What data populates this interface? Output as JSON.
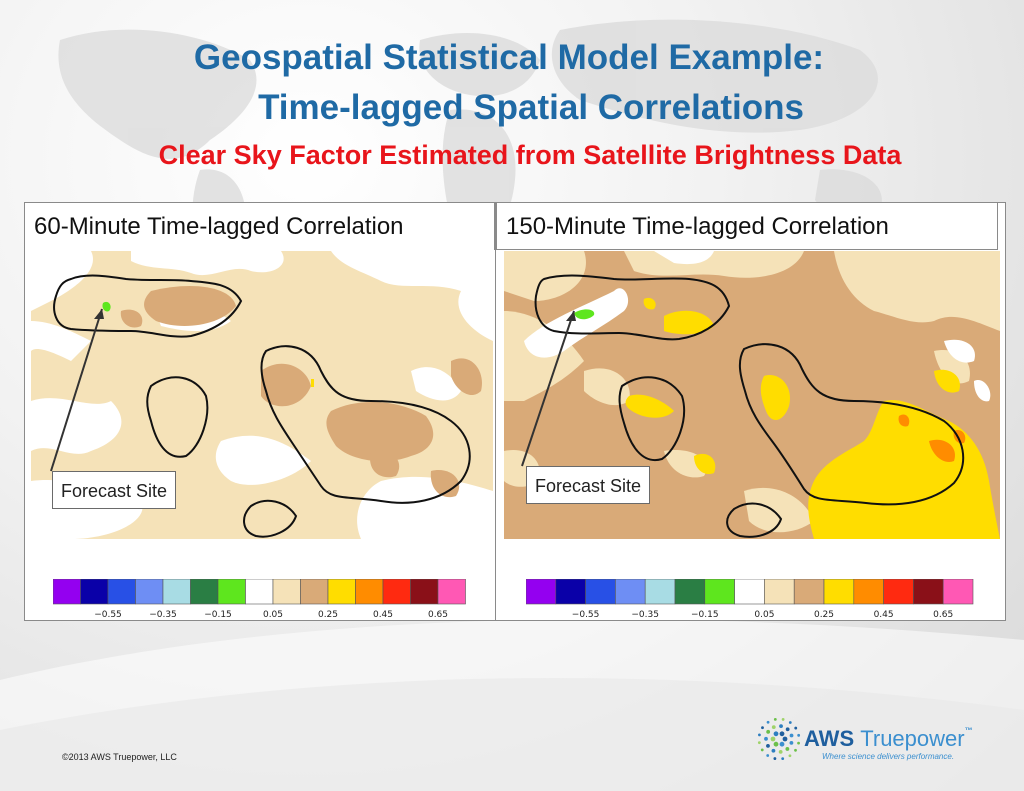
{
  "title": {
    "line1": "Geospatial Statistical Model Example:",
    "line2": "Time-lagged Spatial Correlations",
    "line3": "Clear Sky Factor Estimated from Satellite Brightness Data"
  },
  "panels": [
    {
      "header": "60-Minute Time-lagged Correlation",
      "forecast_label": "Forecast Site"
    },
    {
      "header": "150-Minute Time-lagged Correlation",
      "forecast_label": "Forecast Site"
    }
  ],
  "colorbar": {
    "colors": [
      "#9400f0",
      "#0a00a8",
      "#2850e6",
      "#6e8ef4",
      "#a8dce4",
      "#2a7e44",
      "#5ee61e",
      "#ffffff",
      "#f5e2b8",
      "#d9aa78",
      "#ffdd00",
      "#ff8c00",
      "#ff2a10",
      "#8a1018",
      "#ff58b4"
    ],
    "tick_labels": [
      "−0.55",
      "−0.35",
      "−0.15",
      "0.05",
      "0.25",
      "0.45",
      "0.65"
    ]
  },
  "map_colors": {
    "tan": "#f5e2b8",
    "brown": "#d9aa78",
    "yellow": "#ffdd00",
    "orange": "#ff8c00",
    "green": "#5ee61e"
  },
  "footer": {
    "copyright": "©2013 AWS Truepower, LLC",
    "logo_bold": "AWS",
    "logo_light": "Truepower",
    "logo_tm": "™",
    "logo_tagline": "Where science delivers performance."
  }
}
